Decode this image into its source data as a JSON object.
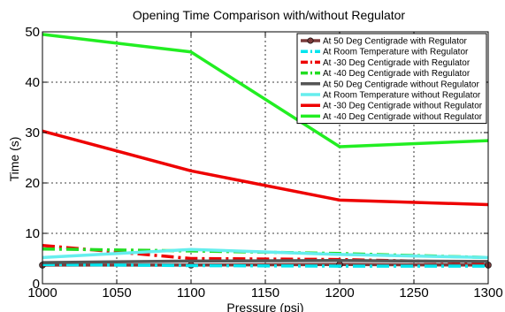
{
  "chart_data": {
    "type": "line",
    "title": "Opening Time Comparison with/without Regulator",
    "xlabel": "Pressure (psi)",
    "ylabel": "Time (s)",
    "xlim": [
      1000,
      1300
    ],
    "ylim": [
      0,
      50
    ],
    "xticks": [
      1000,
      1050,
      1100,
      1150,
      1200,
      1250,
      1300
    ],
    "yticks": [
      0,
      10,
      20,
      30,
      40,
      50
    ],
    "grid": true,
    "legend_position": "top-right",
    "x": [
      1000,
      1100,
      1200,
      1300
    ],
    "series": [
      {
        "name": "At 50 Deg Centigrade with Regulator",
        "values": [
          3.7,
          3.7,
          3.8,
          3.7
        ],
        "color": "#7a3a3a",
        "style": "solid",
        "marker": "circle"
      },
      {
        "name": "At Room Temperature with Regulator",
        "values": [
          3.8,
          3.6,
          3.5,
          3.5
        ],
        "color": "#00e5ee",
        "style": "dashdot",
        "marker": "none"
      },
      {
        "name": "At -30 Deg Centigrade with Regulator",
        "values": [
          7.6,
          5.0,
          4.8,
          4.2
        ],
        "color": "#ee0000",
        "style": "dashdot",
        "marker": "none"
      },
      {
        "name": "At -40 Deg Centigrade with Regulator",
        "values": [
          6.9,
          6.5,
          6.0,
          5.2
        ],
        "color": "#22dd22",
        "style": "dashdot",
        "marker": "none"
      },
      {
        "name": "At 50 Deg Centigrade without Regulator",
        "values": [
          4.2,
          4.5,
          4.6,
          4.4
        ],
        "color": "#555555",
        "style": "solid",
        "marker": "none"
      },
      {
        "name": "At Room Temperature without Regulator",
        "values": [
          5.2,
          6.8,
          5.8,
          5.2
        ],
        "color": "#66eeee",
        "style": "solid",
        "marker": "none"
      },
      {
        "name": "At -30 Deg Centigrade without Regulator",
        "values": [
          30.3,
          22.4,
          16.6,
          15.7
        ],
        "color": "#ee0000",
        "style": "solid",
        "marker": "none"
      },
      {
        "name": "At -40 Deg Centigrade without Regulator",
        "values": [
          49.5,
          46.0,
          27.2,
          28.4
        ],
        "color": "#22ee22",
        "style": "solid",
        "marker": "none"
      }
    ]
  }
}
